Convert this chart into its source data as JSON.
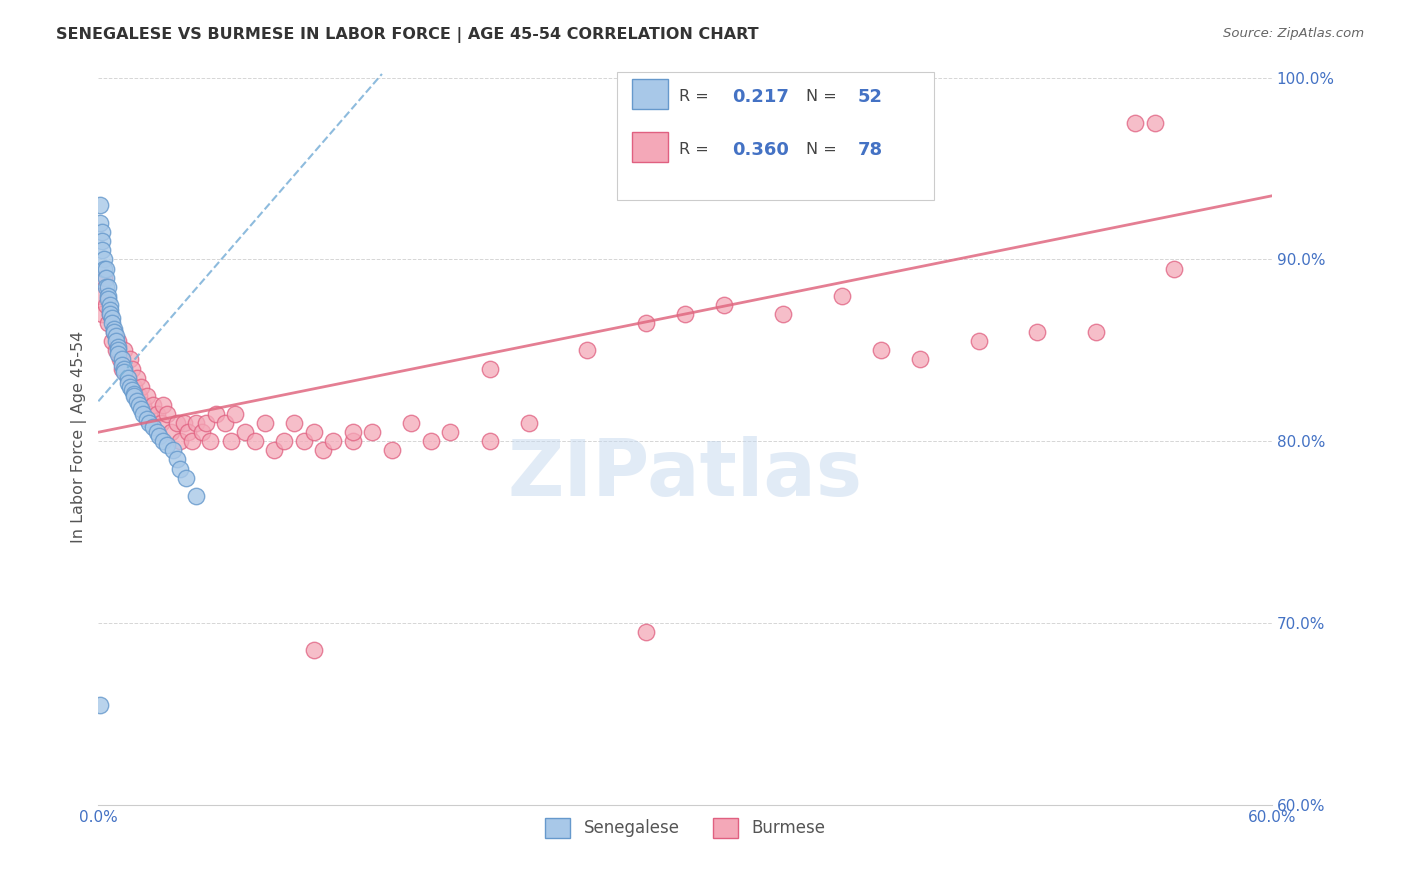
{
  "title": "SENEGALESE VS BURMESE IN LABOR FORCE | AGE 45-54 CORRELATION CHART",
  "source": "Source: ZipAtlas.com",
  "ylabel": "In Labor Force | Age 45-54",
  "watermark": "ZIPatlas",
  "xmin": 0.0,
  "xmax": 0.6,
  "ymin": 0.6,
  "ymax": 1.005,
  "xtick_labels": [
    "0.0%",
    "",
    "",
    "",
    "",
    "",
    "",
    "",
    "60.0%"
  ],
  "ytick_labels": [
    "60.0%",
    "70.0%",
    "80.0%",
    "90.0%",
    "100.0%"
  ],
  "yticks": [
    0.6,
    0.7,
    0.8,
    0.9,
    1.0
  ],
  "color_blue": "#a8c8e8",
  "color_pink": "#f4a8b8",
  "edge_blue": "#6699cc",
  "edge_pink": "#e06080",
  "trendline_blue": "#7ab0d8",
  "trendline_pink": "#e06880",
  "axis_color": "#4472c4",
  "title_color": "#333333",
  "legend_r1": "0.217",
  "legend_n1": "52",
  "legend_r2": "0.360",
  "legend_n2": "78",
  "senegalese_x": [
    0.001,
    0.001,
    0.002,
    0.002,
    0.002,
    0.003,
    0.003,
    0.004,
    0.004,
    0.004,
    0.005,
    0.005,
    0.005,
    0.006,
    0.006,
    0.006,
    0.007,
    0.007,
    0.008,
    0.008,
    0.009,
    0.009,
    0.01,
    0.01,
    0.01,
    0.012,
    0.012,
    0.013,
    0.013,
    0.015,
    0.015,
    0.016,
    0.017,
    0.018,
    0.018,
    0.02,
    0.021,
    0.022,
    0.023,
    0.025,
    0.026,
    0.028,
    0.03,
    0.031,
    0.033,
    0.035,
    0.038,
    0.04,
    0.042,
    0.045,
    0.05,
    0.001
  ],
  "senegalese_y": [
    0.93,
    0.92,
    0.915,
    0.91,
    0.905,
    0.9,
    0.895,
    0.895,
    0.89,
    0.885,
    0.885,
    0.88,
    0.878,
    0.875,
    0.872,
    0.87,
    0.868,
    0.865,
    0.862,
    0.86,
    0.858,
    0.855,
    0.852,
    0.85,
    0.848,
    0.845,
    0.842,
    0.84,
    0.838,
    0.835,
    0.832,
    0.83,
    0.828,
    0.826,
    0.825,
    0.822,
    0.82,
    0.818,
    0.815,
    0.812,
    0.81,
    0.808,
    0.805,
    0.803,
    0.8,
    0.798,
    0.795,
    0.79,
    0.785,
    0.78,
    0.77,
    0.655
  ],
  "burmese_x": [
    0.001,
    0.002,
    0.003,
    0.004,
    0.005,
    0.006,
    0.007,
    0.008,
    0.009,
    0.01,
    0.011,
    0.012,
    0.013,
    0.015,
    0.016,
    0.017,
    0.018,
    0.02,
    0.021,
    0.022,
    0.023,
    0.025,
    0.026,
    0.028,
    0.03,
    0.032,
    0.033,
    0.035,
    0.037,
    0.04,
    0.042,
    0.044,
    0.046,
    0.048,
    0.05,
    0.053,
    0.055,
    0.057,
    0.06,
    0.065,
    0.068,
    0.07,
    0.075,
    0.08,
    0.085,
    0.09,
    0.095,
    0.1,
    0.105,
    0.11,
    0.115,
    0.12,
    0.13,
    0.14,
    0.15,
    0.16,
    0.17,
    0.18,
    0.2,
    0.22,
    0.25,
    0.28,
    0.3,
    0.32,
    0.35,
    0.38,
    0.4,
    0.42,
    0.45,
    0.48,
    0.51,
    0.53,
    0.54,
    0.55,
    0.13,
    0.2,
    0.28,
    0.11
  ],
  "burmese_y": [
    0.88,
    0.87,
    0.89,
    0.875,
    0.865,
    0.87,
    0.855,
    0.86,
    0.85,
    0.855,
    0.845,
    0.84,
    0.85,
    0.835,
    0.845,
    0.84,
    0.83,
    0.835,
    0.825,
    0.83,
    0.82,
    0.825,
    0.815,
    0.82,
    0.815,
    0.81,
    0.82,
    0.815,
    0.805,
    0.81,
    0.8,
    0.81,
    0.805,
    0.8,
    0.81,
    0.805,
    0.81,
    0.8,
    0.815,
    0.81,
    0.8,
    0.815,
    0.805,
    0.8,
    0.81,
    0.795,
    0.8,
    0.81,
    0.8,
    0.805,
    0.795,
    0.8,
    0.8,
    0.805,
    0.795,
    0.81,
    0.8,
    0.805,
    0.8,
    0.81,
    0.85,
    0.865,
    0.87,
    0.875,
    0.87,
    0.88,
    0.85,
    0.845,
    0.855,
    0.86,
    0.86,
    0.975,
    0.975,
    0.895,
    0.805,
    0.84,
    0.695,
    0.685
  ],
  "trendline_sen_x0": 0.0,
  "trendline_sen_x1": 0.145,
  "trendline_sen_y0": 0.822,
  "trendline_sen_y1": 1.002,
  "trendline_bur_x0": 0.0,
  "trendline_bur_x1": 0.6,
  "trendline_bur_y0": 0.805,
  "trendline_bur_y1": 0.935
}
